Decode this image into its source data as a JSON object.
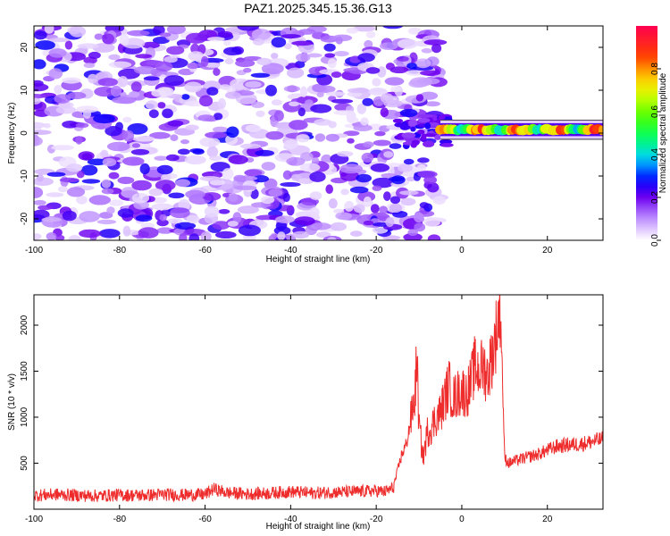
{
  "title": "PAZ1.2025.345.15.36.G13",
  "colors": {
    "snr_line": "#ee2c2c",
    "axes": "#000000",
    "background": "#ffffff"
  },
  "chart_data": [
    {
      "type": "heatmap",
      "name": "spectrogram",
      "xlabel": "Height of straight line (km)",
      "ylabel": "Frequency (Hz)",
      "xlim": [
        -100,
        33
      ],
      "ylim": [
        -25,
        25
      ],
      "xticks": [
        -100,
        -80,
        -60,
        -40,
        -20,
        0,
        20
      ],
      "yticks": [
        -20,
        -10,
        0,
        10,
        20
      ],
      "description_series": [
        {
          "name": "noise_region",
          "x_range": [
            -100,
            -5
          ],
          "freq_range": [
            -25,
            25
          ],
          "amplitude_range": [
            0.0,
            0.25
          ]
        },
        {
          "name": "signal_band",
          "x_range": [
            -5,
            33
          ],
          "freq_center": 0.8,
          "freq_width": 2.5,
          "amplitude_range": [
            0.15,
            1.0
          ]
        }
      ],
      "colorbar": {
        "label": "Normalized spectral amplitude",
        "range": [
          0.0,
          1.0
        ],
        "ticks": [
          0.0,
          0.2,
          0.4,
          0.6,
          0.8
        ]
      }
    },
    {
      "type": "line",
      "name": "snr",
      "xlabel": "Height of straight line (km)",
      "ylabel": "SNR (10 * v/v)",
      "xlim": [
        -100,
        33
      ],
      "ylim": [
        0,
        2330
      ],
      "xticks": [
        -100,
        -80,
        -60,
        -40,
        -20,
        0,
        20
      ],
      "yticks": [
        500,
        1000,
        1500,
        2000
      ],
      "series": [
        {
          "name": "SNR",
          "x": [
            -100,
            -95,
            -90,
            -85,
            -80,
            -75,
            -70,
            -65,
            -60,
            -58,
            -55,
            -50,
            -45,
            -40,
            -35,
            -30,
            -25,
            -20,
            -18,
            -16,
            -15,
            -14,
            -13,
            -12,
            -11,
            -10.5,
            -10,
            -9,
            -8,
            -7,
            -6,
            -5,
            -4,
            -3,
            -2,
            -1,
            0,
            1,
            2,
            3,
            4,
            5,
            6,
            7,
            8,
            8.5,
            9,
            9.5,
            10,
            11,
            12,
            15,
            18,
            20,
            22,
            25,
            28,
            30,
            33
          ],
          "values": [
            150,
            160,
            150,
            145,
            155,
            150,
            160,
            155,
            160,
            220,
            180,
            165,
            175,
            190,
            175,
            185,
            190,
            200,
            190,
            230,
            420,
            600,
            700,
            950,
            1200,
            1650,
            900,
            560,
            850,
            900,
            1000,
            1050,
            1200,
            1350,
            1200,
            1250,
            1300,
            1250,
            1350,
            1550,
            1500,
            1550,
            1450,
            1650,
            1900,
            2050,
            2250,
            1450,
            560,
            500,
            520,
            560,
            600,
            640,
            680,
            700,
            710,
            730,
            760
          ]
        }
      ]
    }
  ]
}
